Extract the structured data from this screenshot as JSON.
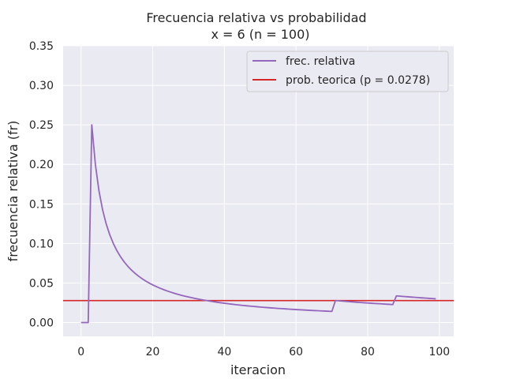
{
  "chart_data": {
    "type": "line",
    "title": "Frecuencia relativa vs probabilidad",
    "subtitle": "x = 6 (n = 100)",
    "xlabel": "iteracion",
    "ylabel": "frecuencia relativa (fr)",
    "xlim": [
      -5,
      104
    ],
    "ylim": [
      -0.0175,
      0.35
    ],
    "xticks": [
      0,
      20,
      40,
      60,
      80,
      100
    ],
    "yticks": [
      0.0,
      0.05,
      0.1,
      0.15,
      0.2,
      0.25,
      0.3,
      0.35
    ],
    "xtick_labels": [
      "0",
      "20",
      "40",
      "60",
      "80",
      "100"
    ],
    "ytick_labels": [
      "0.00",
      "0.05",
      "0.10",
      "0.15",
      "0.20",
      "0.25",
      "0.30",
      "0.35"
    ],
    "grid": true,
    "legend_position": "top-right",
    "series": [
      {
        "name": "frec. relativa",
        "color": "#9467bd",
        "hits_at": [
          3,
          71,
          88
        ],
        "n_points": 100
      }
    ],
    "reference_line": {
      "name": "prob. teorica (p = 0.0278)",
      "color": "#d62728",
      "y": 0.0278
    }
  },
  "colors": {
    "plot_background": "#eaeaf2",
    "grid": "#ffffff",
    "legend_background": "#eaeaf2",
    "legend_border": "#cccccc"
  }
}
